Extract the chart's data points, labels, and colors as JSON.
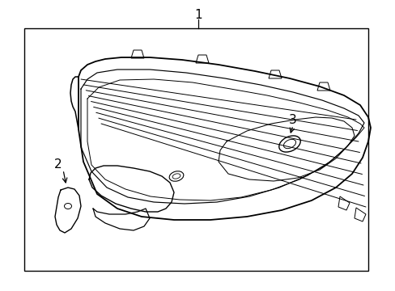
{
  "background_color": "#ffffff",
  "border_color": "#000000",
  "line_color": "#000000",
  "label_color": "#000000",
  "fig_width": 4.89,
  "fig_height": 3.6,
  "dpi": 100
}
